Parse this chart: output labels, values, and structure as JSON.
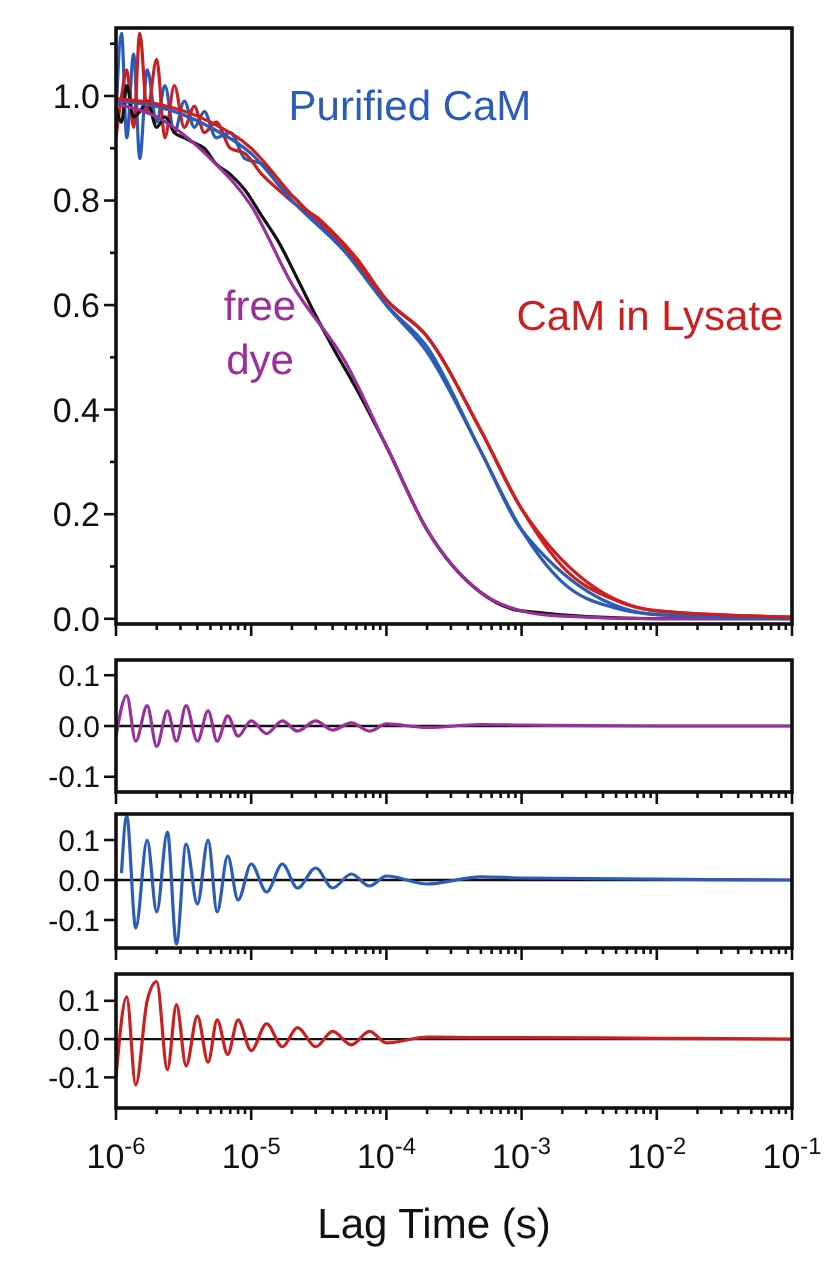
{
  "chart_data": [
    {
      "type": "line",
      "log": "x",
      "tick_labels": "y",
      "xlim": [
        1e-06,
        0.1
      ],
      "ylim": [
        -0.01,
        1.13
      ],
      "xticks": [
        {
          "value": 1e-06,
          "label": null
        },
        {
          "value": 2e-06,
          "label": null
        },
        {
          "value": 3e-06,
          "label": null
        },
        {
          "value": 4e-06,
          "label": null
        },
        {
          "value": 5e-06,
          "label": null
        },
        {
          "value": 6e-06,
          "label": null
        },
        {
          "value": 7e-06,
          "label": null
        },
        {
          "value": 8e-06,
          "label": null
        },
        {
          "value": 9e-06,
          "label": null
        },
        {
          "value": 1e-05,
          "label": null
        },
        {
          "value": 2e-05,
          "label": null
        },
        {
          "value": 3e-05,
          "label": null
        },
        {
          "value": 4e-05,
          "label": null
        },
        {
          "value": 5e-05,
          "label": null
        },
        {
          "value": 6e-05,
          "label": null
        },
        {
          "value": 7e-05,
          "label": null
        },
        {
          "value": 8e-05,
          "label": null
        },
        {
          "value": 9e-05,
          "label": null
        },
        {
          "value": 0.0001,
          "label": null
        },
        {
          "value": 0.0002,
          "label": null
        },
        {
          "value": 0.0003,
          "label": null
        },
        {
          "value": 0.0004,
          "label": null
        },
        {
          "value": 0.0005,
          "label": null
        },
        {
          "value": 0.0006,
          "label": null
        },
        {
          "value": 0.0007,
          "label": null
        },
        {
          "value": 0.0008,
          "label": null
        },
        {
          "value": 0.0009,
          "label": null
        },
        {
          "value": 0.001,
          "label": null
        },
        {
          "value": 0.002,
          "label": null
        },
        {
          "value": 0.003,
          "label": null
        },
        {
          "value": 0.004,
          "label": null
        },
        {
          "value": 0.005,
          "label": null
        },
        {
          "value": 0.006,
          "label": null
        },
        {
          "value": 0.007,
          "label": null
        },
        {
          "value": 0.008,
          "label": null
        },
        {
          "value": 0.009,
          "label": null
        },
        {
          "value": 0.01,
          "label": null
        },
        {
          "value": 0.02,
          "label": null
        },
        {
          "value": 0.03,
          "label": null
        },
        {
          "value": 0.04,
          "label": null
        },
        {
          "value": 0.05,
          "label": null
        },
        {
          "value": 0.06,
          "label": null
        },
        {
          "value": 0.07,
          "label": null
        },
        {
          "value": 0.08,
          "label": null
        },
        {
          "value": 0.09,
          "label": null
        },
        {
          "value": 0.1,
          "label": null
        }
      ],
      "yticks": [
        {
          "value": 0,
          "label": "0.0"
        },
        {
          "value": 0.1,
          "label": null
        },
        {
          "value": 0.2,
          "label": "0.2"
        },
        {
          "value": 0.3,
          "label": null
        },
        {
          "value": 0.4,
          "label": "0.4"
        },
        {
          "value": 0.5,
          "label": null
        },
        {
          "value": 0.6,
          "label": "0.6"
        },
        {
          "value": 0.7,
          "label": null
        },
        {
          "value": 0.8,
          "label": "0.8"
        },
        {
          "value": 0.9,
          "label": null
        },
        {
          "value": 1.0,
          "label": "1.0"
        },
        {
          "value": 1.1,
          "label": null
        }
      ],
      "series": [
        {
          "color": "#2a5cb8",
          "x": [
            1e-06,
            1.1e-06,
            1.2e-06,
            1.35e-06,
            1.5e-06,
            1.7e-06,
            2e-06,
            2.3e-06,
            2.7e-06,
            3.2e-06,
            3.8e-06,
            4.5e-06,
            5.5e-06,
            7e-06,
            9e-06,
            1.2e-05,
            1.6e-05,
            2.2e-05,
            3e-05,
            4e-05,
            6e-05,
            0.0001,
            0.0002,
            0.0005,
            0.001,
            0.01,
            0.1
          ],
          "values": [
            0.96,
            1.12,
            0.92,
            1.08,
            0.88,
            1.05,
            0.95,
            1.02,
            0.93,
            0.99,
            0.94,
            0.97,
            0.92,
            0.93,
            0.88,
            0.87,
            0.83,
            0.8,
            0.76,
            0.73,
            0.68,
            0.6,
            0.51,
            0.32,
            0.17,
            0.008,
            0
          ]
        },
        {
          "color": "#cc1f1f",
          "x": [
            1e-06,
            1.1e-06,
            1.2e-06,
            1.35e-06,
            1.5e-06,
            1.7e-06,
            2e-06,
            2.3e-06,
            2.7e-06,
            3.2e-06,
            3.8e-06,
            4.5e-06,
            5.5e-06,
            7e-06,
            9e-06,
            1.2e-05,
            1.6e-05,
            2.2e-05,
            3e-05,
            4e-05,
            6e-05,
            0.0001,
            0.0002,
            0.0005,
            0.001,
            0.01,
            0.1
          ],
          "values": [
            0.92,
            1.0,
            1.05,
            0.94,
            1.12,
            0.97,
            1.07,
            0.92,
            1.02,
            0.94,
            0.98,
            0.93,
            0.95,
            0.9,
            0.89,
            0.85,
            0.82,
            0.79,
            0.77,
            0.74,
            0.69,
            0.61,
            0.54,
            0.36,
            0.21,
            0.015,
            0.003
          ]
        },
        {
          "color": "#111111",
          "x": [
            1e-06,
            1.1e-06,
            1.2e-06,
            1.35e-06,
            1.5e-06,
            1.7e-06,
            2e-06,
            2.3e-06,
            2.7e-06,
            3.2e-06,
            3.8e-06,
            4.5e-06,
            5.5e-06,
            7e-06,
            9e-06,
            1.2e-05,
            1.6e-05,
            2.2e-05,
            3e-05,
            4e-05,
            6e-05,
            0.0001,
            0.0002,
            0.0005,
            0.001,
            0.01,
            0.1
          ],
          "values": [
            0.98,
            0.95,
            1.02,
            0.96,
            0.97,
            0.99,
            0.94,
            0.96,
            0.93,
            0.92,
            0.91,
            0.9,
            0.87,
            0.85,
            0.82,
            0.77,
            0.72,
            0.65,
            0.58,
            0.52,
            0.44,
            0.33,
            0.17,
            0.05,
            0.015,
            0,
            0
          ]
        },
        {
          "name": "free dye",
          "color": "#9b2f9b",
          "x": [
            1e-06,
            2e-06,
            5e-06,
            1e-05,
            2e-05,
            5e-05,
            0.0001,
            0.0002,
            0.0005,
            0.001,
            0.002,
            0.01,
            0.1
          ],
          "values": [
            0.985,
            0.96,
            0.88,
            0.79,
            0.64,
            0.49,
            0.33,
            0.17,
            0.05,
            0.015,
            0.005,
            0,
            0
          ]
        },
        {
          "name": "Purified CaM",
          "color": "#2a5cb8",
          "x": [
            1e-06,
            2e-06,
            5e-06,
            1e-05,
            2e-05,
            5e-05,
            0.0001,
            0.0002,
            0.0005,
            0.001,
            0.002,
            0.005,
            0.01,
            0.1
          ],
          "values": [
            0.99,
            0.98,
            0.94,
            0.89,
            0.8,
            0.7,
            0.6,
            0.52,
            0.32,
            0.17,
            0.07,
            0.02,
            0.008,
            0
          ]
        },
        {
          "name": "CaM in Lysate",
          "color": "#cc1f1f",
          "x": [
            1e-06,
            2e-06,
            5e-06,
            1e-05,
            2e-05,
            5e-05,
            0.0001,
            0.0002,
            0.0005,
            0.001,
            0.002,
            0.005,
            0.01,
            0.1
          ],
          "values": [
            0.995,
            0.985,
            0.95,
            0.9,
            0.81,
            0.71,
            0.61,
            0.54,
            0.36,
            0.21,
            0.1,
            0.035,
            0.015,
            0.003
          ]
        }
      ]
    },
    {
      "type": "line",
      "log": "x",
      "tick_labels": "y",
      "xlim": [
        1e-06,
        0.1
      ],
      "ylim": [
        -0.13,
        0.13
      ],
      "xticks": [
        {
          "value": 1e-06,
          "label": null
        },
        {
          "value": 2e-06,
          "label": null
        },
        {
          "value": 3e-06,
          "label": null
        },
        {
          "value": 4e-06,
          "label": null
        },
        {
          "value": 5e-06,
          "label": null
        },
        {
          "value": 6e-06,
          "label": null
        },
        {
          "value": 7e-06,
          "label": null
        },
        {
          "value": 8e-06,
          "label": null
        },
        {
          "value": 9e-06,
          "label": null
        },
        {
          "value": 1e-05,
          "label": null
        },
        {
          "value": 2e-05,
          "label": null
        },
        {
          "value": 3e-05,
          "label": null
        },
        {
          "value": 4e-05,
          "label": null
        },
        {
          "value": 5e-05,
          "label": null
        },
        {
          "value": 6e-05,
          "label": null
        },
        {
          "value": 7e-05,
          "label": null
        },
        {
          "value": 8e-05,
          "label": null
        },
        {
          "value": 9e-05,
          "label": null
        },
        {
          "value": 0.0001,
          "label": null
        },
        {
          "value": 0.0002,
          "label": null
        },
        {
          "value": 0.0003,
          "label": null
        },
        {
          "value": 0.0004,
          "label": null
        },
        {
          "value": 0.0005,
          "label": null
        },
        {
          "value": 0.0006,
          "label": null
        },
        {
          "value": 0.0007,
          "label": null
        },
        {
          "value": 0.0008,
          "label": null
        },
        {
          "value": 0.0009,
          "label": null
        },
        {
          "value": 0.001,
          "label": null
        },
        {
          "value": 0.002,
          "label": null
        },
        {
          "value": 0.003,
          "label": null
        },
        {
          "value": 0.004,
          "label": null
        },
        {
          "value": 0.005,
          "label": null
        },
        {
          "value": 0.006,
          "label": null
        },
        {
          "value": 0.007,
          "label": null
        },
        {
          "value": 0.008,
          "label": null
        },
        {
          "value": 0.009,
          "label": null
        },
        {
          "value": 0.01,
          "label": null
        },
        {
          "value": 0.02,
          "label": null
        },
        {
          "value": 0.03,
          "label": null
        },
        {
          "value": 0.04,
          "label": null
        },
        {
          "value": 0.05,
          "label": null
        },
        {
          "value": 0.06,
          "label": null
        },
        {
          "value": 0.07,
          "label": null
        },
        {
          "value": 0.08,
          "label": null
        },
        {
          "value": 0.09,
          "label": null
        },
        {
          "value": 0.1,
          "label": null
        }
      ],
      "yticks": [
        {
          "value": -0.1,
          "label": "-0.1"
        },
        {
          "value": 0,
          "label": "0.0"
        },
        {
          "value": 0.1,
          "label": "0.1"
        }
      ],
      "ref_lines": [
        {
          "axis": "y",
          "value": 0,
          "color": "#111111"
        }
      ],
      "series": [
        {
          "color": "#9b2f9b",
          "x": [
            1e-06,
            1.2e-06,
            1.4e-06,
            1.7e-06,
            2e-06,
            2.4e-06,
            2.8e-06,
            3.3e-06,
            4e-06,
            4.8e-06,
            5.6e-06,
            6.7e-06,
            8e-06,
            1e-05,
            1.3e-05,
            1.7e-05,
            2.2e-05,
            3e-05,
            4e-05,
            5.5e-05,
            7.5e-05,
            0.0001,
            0.0002,
            0.0005,
            0.001,
            0.01,
            0.1
          ],
          "values": [
            -0.02,
            0.06,
            -0.03,
            0.04,
            -0.04,
            0.03,
            -0.03,
            0.04,
            -0.03,
            0.03,
            -0.03,
            0.02,
            -0.02,
            0.01,
            -0.015,
            0.01,
            -0.01,
            0.01,
            -0.008,
            0.006,
            -0.01,
            0.004,
            -0.003,
            0.003,
            0.002,
            0,
            0
          ]
        }
      ]
    },
    {
      "type": "line",
      "log": "x",
      "tick_labels": "y",
      "xlim": [
        1e-06,
        0.1
      ],
      "ylim": [
        -0.17,
        0.165
      ],
      "xticks": [
        {
          "value": 1e-06,
          "label": null
        },
        {
          "value": 2e-06,
          "label": null
        },
        {
          "value": 3e-06,
          "label": null
        },
        {
          "value": 4e-06,
          "label": null
        },
        {
          "value": 5e-06,
          "label": null
        },
        {
          "value": 6e-06,
          "label": null
        },
        {
          "value": 7e-06,
          "label": null
        },
        {
          "value": 8e-06,
          "label": null
        },
        {
          "value": 9e-06,
          "label": null
        },
        {
          "value": 1e-05,
          "label": null
        },
        {
          "value": 2e-05,
          "label": null
        },
        {
          "value": 3e-05,
          "label": null
        },
        {
          "value": 4e-05,
          "label": null
        },
        {
          "value": 5e-05,
          "label": null
        },
        {
          "value": 6e-05,
          "label": null
        },
        {
          "value": 7e-05,
          "label": null
        },
        {
          "value": 8e-05,
          "label": null
        },
        {
          "value": 9e-05,
          "label": null
        },
        {
          "value": 0.0001,
          "label": null
        },
        {
          "value": 0.0002,
          "label": null
        },
        {
          "value": 0.0003,
          "label": null
        },
        {
          "value": 0.0004,
          "label": null
        },
        {
          "value": 0.0005,
          "label": null
        },
        {
          "value": 0.0006,
          "label": null
        },
        {
          "value": 0.0007,
          "label": null
        },
        {
          "value": 0.0008,
          "label": null
        },
        {
          "value": 0.0009,
          "label": null
        },
        {
          "value": 0.001,
          "label": null
        },
        {
          "value": 0.002,
          "label": null
        },
        {
          "value": 0.003,
          "label": null
        },
        {
          "value": 0.004,
          "label": null
        },
        {
          "value": 0.005,
          "label": null
        },
        {
          "value": 0.006,
          "label": null
        },
        {
          "value": 0.007,
          "label": null
        },
        {
          "value": 0.008,
          "label": null
        },
        {
          "value": 0.009,
          "label": null
        },
        {
          "value": 0.01,
          "label": null
        },
        {
          "value": 0.02,
          "label": null
        },
        {
          "value": 0.03,
          "label": null
        },
        {
          "value": 0.04,
          "label": null
        },
        {
          "value": 0.05,
          "label": null
        },
        {
          "value": 0.06,
          "label": null
        },
        {
          "value": 0.07,
          "label": null
        },
        {
          "value": 0.08,
          "label": null
        },
        {
          "value": 0.09,
          "label": null
        },
        {
          "value": 0.1,
          "label": null
        }
      ],
      "yticks": [
        {
          "value": -0.1,
          "label": "-0.1"
        },
        {
          "value": 0,
          "label": "0.0"
        },
        {
          "value": 0.1,
          "label": "0.1"
        }
      ],
      "ref_lines": [
        {
          "axis": "y",
          "value": 0,
          "color": "#111111"
        }
      ],
      "series": [
        {
          "color": "#2a5cb8",
          "x": [
            1.1e-06,
            1.2e-06,
            1.4e-06,
            1.7e-06,
            2e-06,
            2.4e-06,
            2.8e-06,
            3.3e-06,
            4e-06,
            4.8e-06,
            5.6e-06,
            6.7e-06,
            8e-06,
            1e-05,
            1.3e-05,
            1.7e-05,
            2.2e-05,
            3e-05,
            4e-05,
            5.5e-05,
            7.5e-05,
            0.0001,
            0.0002,
            0.0005,
            0.001,
            0.01,
            0.1
          ],
          "values": [
            0.02,
            0.16,
            -0.12,
            0.1,
            -0.08,
            0.12,
            -0.16,
            0.09,
            -0.06,
            0.1,
            -0.08,
            0.06,
            -0.05,
            0.04,
            -0.03,
            0.04,
            -0.02,
            0.03,
            -0.02,
            0.015,
            -0.015,
            0.01,
            -0.01,
            0.008,
            0.005,
            0.002,
            0
          ]
        }
      ]
    },
    {
      "type": "line",
      "log": "x",
      "xlabel": "Lag Time (s)",
      "xlim": [
        1e-06,
        0.1
      ],
      "ylim": [
        -0.18,
        0.17
      ],
      "xticks": [
        {
          "value": 1e-06,
          "label": "10$^{-6}$"
        },
        {
          "value": 2e-06,
          "label": null
        },
        {
          "value": 3e-06,
          "label": null
        },
        {
          "value": 4e-06,
          "label": null
        },
        {
          "value": 5e-06,
          "label": null
        },
        {
          "value": 6e-06,
          "label": null
        },
        {
          "value": 7e-06,
          "label": null
        },
        {
          "value": 8e-06,
          "label": null
        },
        {
          "value": 9e-06,
          "label": null
        },
        {
          "value": 1e-05,
          "label": "10$^{-5}$"
        },
        {
          "value": 2e-05,
          "label": null
        },
        {
          "value": 3e-05,
          "label": null
        },
        {
          "value": 4e-05,
          "label": null
        },
        {
          "value": 5e-05,
          "label": null
        },
        {
          "value": 6e-05,
          "label": null
        },
        {
          "value": 7e-05,
          "label": null
        },
        {
          "value": 8e-05,
          "label": null
        },
        {
          "value": 9e-05,
          "label": null
        },
        {
          "value": 0.0001,
          "label": "10$^{-4}$"
        },
        {
          "value": 0.0002,
          "label": null
        },
        {
          "value": 0.0003,
          "label": null
        },
        {
          "value": 0.0004,
          "label": null
        },
        {
          "value": 0.0005,
          "label": null
        },
        {
          "value": 0.0006,
          "label": null
        },
        {
          "value": 0.0007,
          "label": null
        },
        {
          "value": 0.0008,
          "label": null
        },
        {
          "value": 0.0009,
          "label": null
        },
        {
          "value": 0.001,
          "label": "10$^{-3}$"
        },
        {
          "value": 0.002,
          "label": null
        },
        {
          "value": 0.003,
          "label": null
        },
        {
          "value": 0.004,
          "label": null
        },
        {
          "value": 0.005,
          "label": null
        },
        {
          "value": 0.006,
          "label": null
        },
        {
          "value": 0.007,
          "label": null
        },
        {
          "value": 0.008,
          "label": null
        },
        {
          "value": 0.009,
          "label": null
        },
        {
          "value": 0.01,
          "label": "10$^{-2}$"
        },
        {
          "value": 0.02,
          "label": null
        },
        {
          "value": 0.03,
          "label": null
        },
        {
          "value": 0.04,
          "label": null
        },
        {
          "value": 0.05,
          "label": null
        },
        {
          "value": 0.06,
          "label": null
        },
        {
          "value": 0.07,
          "label": null
        },
        {
          "value": 0.08,
          "label": null
        },
        {
          "value": 0.09,
          "label": null
        },
        {
          "value": 0.1,
          "label": "10$^{-1}$"
        }
      ],
      "yticks": [
        {
          "value": -0.1,
          "label": "-0.1"
        },
        {
          "value": 0,
          "label": "0.0"
        },
        {
          "value": 0.1,
          "label": "0.1"
        }
      ],
      "ref_lines": [
        {
          "axis": "y",
          "value": 0,
          "color": "#111111"
        }
      ],
      "series": [
        {
          "color": "#cc1f1f",
          "x": [
            1e-06,
            1.2e-06,
            1.4e-06,
            1.7e-06,
            2e-06,
            2.4e-06,
            2.8e-06,
            3.3e-06,
            4e-06,
            4.8e-06,
            5.6e-06,
            6.7e-06,
            8e-06,
            1e-05,
            1.3e-05,
            1.7e-05,
            2.2e-05,
            3e-05,
            4e-05,
            5.5e-05,
            7.5e-05,
            0.0001,
            0.0002,
            0.0005,
            0.001,
            0.01,
            0.1
          ],
          "values": [
            -0.1,
            0.11,
            -0.12,
            0.1,
            0.15,
            -0.08,
            0.09,
            -0.07,
            0.06,
            -0.06,
            0.05,
            -0.04,
            0.05,
            -0.03,
            0.04,
            -0.02,
            0.03,
            -0.02,
            0.02,
            -0.015,
            0.02,
            -0.01,
            0.005,
            0.004,
            0.004,
            0.002,
            0
          ]
        }
      ]
    }
  ]
}
